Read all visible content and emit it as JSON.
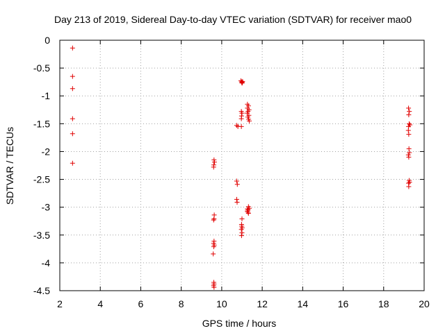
{
  "chart_data": {
    "type": "scatter",
    "title": "Day 213 of 2019, Sidereal Day-to-day VTEC variation (SDTVAR) for receiver mao0",
    "xlabel": "GPS time / hours",
    "ylabel": "SDTVAR / TECUs",
    "xlim": [
      2,
      20
    ],
    "ylim": [
      -4.5,
      0
    ],
    "xticks": [
      "2",
      "4",
      "6",
      "8",
      "10",
      "12",
      "14",
      "16",
      "18",
      "20"
    ],
    "yticks": [
      "0",
      "-0.5",
      "-1",
      "-1.5",
      "-2",
      "-2.5",
      "-3",
      "-3.5",
      "-4",
      "-4.5"
    ],
    "grid": true,
    "marker": "+",
    "color": "#e00000",
    "series": [
      {
        "name": "SDTVAR",
        "points": [
          [
            2.63,
            -0.14
          ],
          [
            2.63,
            -0.65
          ],
          [
            2.63,
            -0.87
          ],
          [
            2.63,
            -1.41
          ],
          [
            2.63,
            -1.68
          ],
          [
            2.63,
            -2.21
          ],
          [
            9.62,
            -2.15
          ],
          [
            9.64,
            -2.19
          ],
          [
            9.61,
            -2.24
          ],
          [
            9.6,
            -2.28
          ],
          [
            9.63,
            -3.14
          ],
          [
            9.62,
            -3.21
          ],
          [
            9.6,
            -3.23
          ],
          [
            9.62,
            -3.61
          ],
          [
            9.6,
            -3.65
          ],
          [
            9.63,
            -3.68
          ],
          [
            9.61,
            -3.71
          ],
          [
            9.58,
            -3.84
          ],
          [
            9.61,
            -4.35
          ],
          [
            9.62,
            -4.38
          ],
          [
            9.6,
            -4.41
          ],
          [
            9.62,
            -4.44
          ],
          [
            10.74,
            -1.53
          ],
          [
            10.8,
            -1.55
          ],
          [
            10.97,
            -1.55
          ],
          [
            10.74,
            -2.53
          ],
          [
            10.77,
            -2.59
          ],
          [
            10.74,
            -2.86
          ],
          [
            10.76,
            -2.91
          ],
          [
            10.95,
            -0.73
          ],
          [
            10.98,
            -0.75
          ],
          [
            11.02,
            -0.76
          ],
          [
            11.03,
            -0.74
          ],
          [
            11.0,
            -0.77
          ],
          [
            10.97,
            -1.28
          ],
          [
            11.0,
            -1.31
          ],
          [
            10.98,
            -1.36
          ],
          [
            10.97,
            -1.41
          ],
          [
            11.0,
            -3.21
          ],
          [
            10.98,
            -3.31
          ],
          [
            10.99,
            -3.34
          ],
          [
            11.01,
            -3.37
          ],
          [
            10.97,
            -3.4
          ],
          [
            11.0,
            -3.46
          ],
          [
            10.98,
            -3.51
          ],
          [
            11.27,
            -1.15
          ],
          [
            11.32,
            -1.18
          ],
          [
            11.27,
            -1.22
          ],
          [
            11.35,
            -1.25
          ],
          [
            11.3,
            -1.28
          ],
          [
            11.26,
            -1.31
          ],
          [
            11.34,
            -1.35
          ],
          [
            11.29,
            -1.38
          ],
          [
            11.33,
            -1.42
          ],
          [
            11.36,
            -1.45
          ],
          [
            11.32,
            -2.99
          ],
          [
            11.36,
            -3.02
          ],
          [
            11.27,
            -3.03
          ],
          [
            11.31,
            -3.05
          ],
          [
            11.26,
            -3.07
          ],
          [
            11.3,
            -3.09
          ],
          [
            11.32,
            -3.11
          ],
          [
            19.23,
            -1.22
          ],
          [
            19.27,
            -1.28
          ],
          [
            19.24,
            -1.34
          ],
          [
            19.26,
            -1.5
          ],
          [
            19.3,
            -1.52
          ],
          [
            19.23,
            -1.55
          ],
          [
            19.22,
            -1.62
          ],
          [
            19.24,
            -1.69
          ],
          [
            19.25,
            -1.95
          ],
          [
            19.27,
            -2.02
          ],
          [
            19.22,
            -2.06
          ],
          [
            19.24,
            -2.1
          ],
          [
            19.26,
            -2.52
          ],
          [
            19.28,
            -2.55
          ],
          [
            19.23,
            -2.57
          ],
          [
            19.24,
            -2.63
          ]
        ]
      }
    ]
  }
}
